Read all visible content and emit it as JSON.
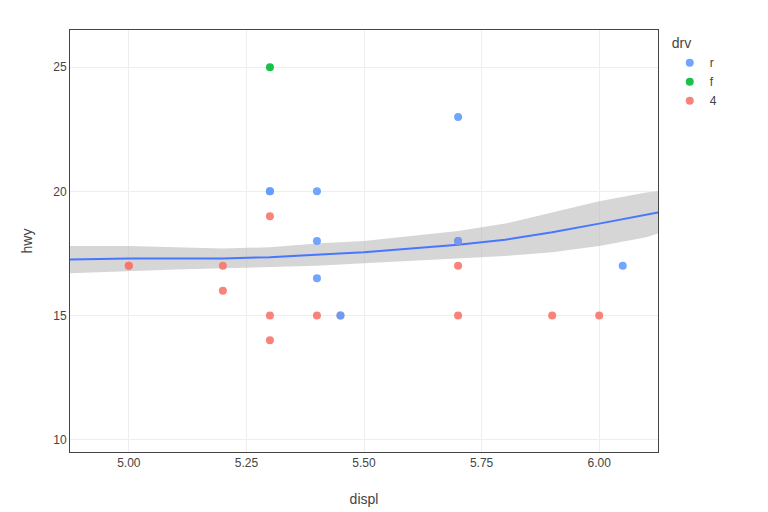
{
  "chart_data": {
    "type": "scatter",
    "xlabel": "displ",
    "ylabel": "hwy",
    "legend_title": "drv",
    "xlim": [
      4.875,
      6.125
    ],
    "ylim": [
      9.5,
      26.5
    ],
    "xticks": [
      {
        "value": 5.0,
        "label": "5.00"
      },
      {
        "value": 5.25,
        "label": "5.25"
      },
      {
        "value": 5.5,
        "label": "5.50"
      },
      {
        "value": 5.75,
        "label": "5.75"
      },
      {
        "value": 6.0,
        "label": "6.00"
      }
    ],
    "yticks": [
      10,
      15,
      20,
      25
    ],
    "grid": true,
    "legend": "upper right",
    "marker": "circle",
    "series": [
      {
        "name": "4",
        "color": "#F8766D",
        "x": [
          5.0,
          5.0,
          5.2,
          5.2,
          5.3,
          5.3,
          5.3,
          5.4,
          5.45,
          5.7,
          5.7,
          5.7,
          5.9,
          6.0
        ],
        "values": [
          17,
          17,
          17,
          16,
          15,
          14,
          19,
          15,
          15,
          18,
          17,
          15,
          15,
          15
        ]
      },
      {
        "name": "f",
        "color": "#00BA38",
        "x": [
          5.3
        ],
        "values": [
          25
        ]
      },
      {
        "name": "r",
        "color": "#619CFF",
        "x": [
          5.3,
          5.3,
          5.4,
          5.4,
          5.4,
          5.45,
          5.7,
          5.7,
          6.05
        ],
        "values": [
          20,
          20,
          20,
          18,
          16.5,
          15,
          23,
          18,
          17
        ]
      }
    ],
    "smooth": {
      "color": "#4876FF",
      "line_style": "solid",
      "x": [
        4.875,
        5.0,
        5.1,
        5.2,
        5.3,
        5.4,
        5.5,
        5.6,
        5.7,
        5.8,
        5.9,
        6.0,
        6.1,
        6.125
      ],
      "values": [
        17.25,
        17.3,
        17.3,
        17.3,
        17.35,
        17.45,
        17.55,
        17.7,
        17.85,
        18.05,
        18.35,
        18.7,
        19.05,
        19.15
      ]
    },
    "band": {
      "color": "#BBBBBB",
      "x": [
        4.875,
        5.0,
        5.1,
        5.2,
        5.3,
        5.4,
        5.5,
        5.6,
        5.7,
        5.8,
        5.9,
        6.0,
        6.1,
        6.125
      ],
      "lower": [
        16.7,
        16.8,
        16.85,
        16.9,
        16.95,
        17.0,
        17.1,
        17.2,
        17.3,
        17.4,
        17.55,
        17.8,
        18.15,
        18.3
      ],
      "upper": [
        17.8,
        17.8,
        17.75,
        17.7,
        17.75,
        17.9,
        18.0,
        18.2,
        18.4,
        18.7,
        19.15,
        19.6,
        19.95,
        20.0
      ]
    }
  }
}
